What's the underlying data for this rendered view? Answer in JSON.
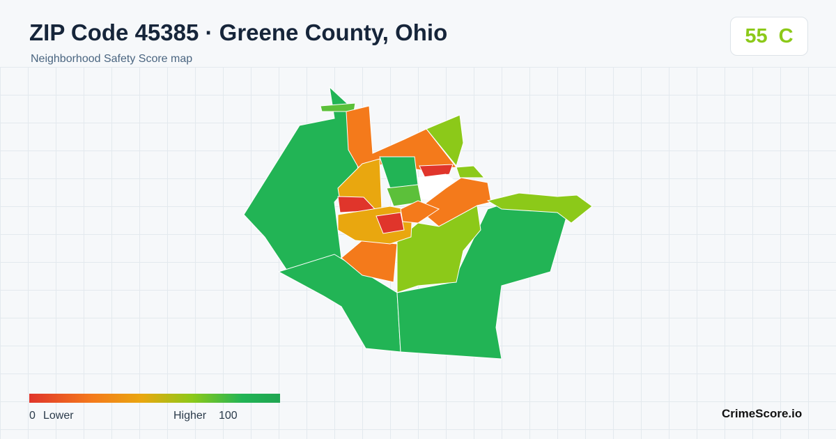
{
  "header": {
    "title": "ZIP Code 45385 · Greene County, Ohio",
    "subtitle": "Neighborhood Safety Score map"
  },
  "score": {
    "value": "55",
    "grade": "C"
  },
  "legend": {
    "min": "0",
    "min_label": "Lower",
    "max_label": "Higher",
    "max": "100"
  },
  "brand": "CrimeScore.io"
}
